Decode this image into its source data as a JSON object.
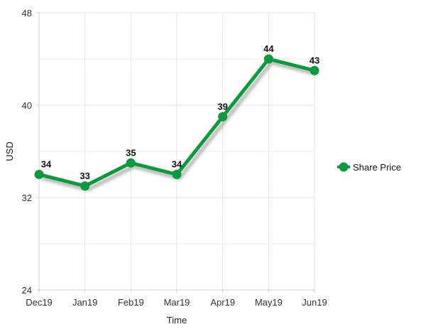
{
  "chart_data": {
    "type": "line",
    "categories": [
      "Dec19",
      "Jan19",
      "Feb19",
      "Mar19",
      "Apr19",
      "May19",
      "Jun19"
    ],
    "series": [
      {
        "name": "Share Price",
        "values": [
          34,
          33,
          35,
          34,
          39,
          44,
          43
        ],
        "color": "#0a9b3c"
      }
    ],
    "xlabel": "Time",
    "ylabel": "USD",
    "ylim": [
      24,
      48
    ],
    "yticks": [
      24,
      32,
      40,
      48
    ],
    "grid": true,
    "legend_position": "right",
    "data_labels": true
  }
}
